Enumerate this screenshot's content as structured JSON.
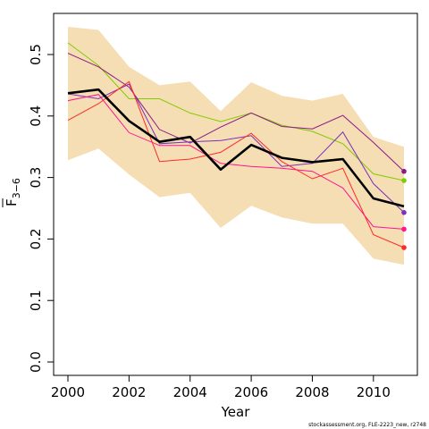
{
  "chart_data": {
    "type": "line",
    "xlabel": "Year",
    "ylabel": "F",
    "ylabel_subscript": "3−6",
    "credit": "stockassessment.org, FLE-2223_new, r2748",
    "xlim": [
      2000,
      2011
    ],
    "ylim": [
      0,
      0.5
    ],
    "x_ticks": [
      2000,
      2002,
      2004,
      2006,
      2008,
      2010
    ],
    "y_ticks": [
      0.0,
      0.1,
      0.2,
      0.3,
      0.4,
      0.5
    ],
    "x_tick_labels": [
      "2000",
      "2002",
      "2004",
      "2006",
      "2008",
      "2010"
    ],
    "y_tick_labels": [
      "0.0",
      "0.1",
      "0.2",
      "0.3",
      "0.4",
      "0.5"
    ],
    "grid": false,
    "x": [
      2000,
      2001,
      2002,
      2003,
      2004,
      2005,
      2006,
      2007,
      2008,
      2009,
      2010,
      2011
    ],
    "band": {
      "color": "#f5deb3",
      "upper": [
        0.545,
        0.54,
        0.48,
        0.45,
        0.456,
        0.408,
        0.455,
        0.433,
        0.425,
        0.436,
        0.366,
        0.35
      ],
      "lower": [
        0.328,
        0.347,
        0.305,
        0.268,
        0.275,
        0.218,
        0.254,
        0.235,
        0.225,
        0.225,
        0.168,
        0.158
      ]
    },
    "main": {
      "color": "#000000",
      "values": [
        0.437,
        0.443,
        0.392,
        0.358,
        0.366,
        0.313,
        0.353,
        0.332,
        0.325,
        0.33,
        0.266,
        0.253
      ]
    },
    "series": [
      {
        "color": "#7fcc00",
        "values": [
          0.519,
          0.482,
          0.428,
          0.428,
          0.405,
          0.391,
          0.405,
          0.385,
          0.375,
          0.355,
          0.306,
          0.295
        ]
      },
      {
        "color": "#8b1a89",
        "values": [
          0.502,
          0.48,
          0.447,
          0.378,
          0.356,
          0.382,
          0.405,
          0.383,
          0.379,
          0.401,
          0.357,
          0.31
        ]
      },
      {
        "color": "#7b2fbf",
        "values": [
          0.436,
          0.428,
          0.452,
          0.355,
          0.358,
          0.36,
          0.368,
          0.318,
          0.323,
          0.374,
          0.29,
          0.243
        ]
      },
      {
        "color": "#ff1493",
        "values": [
          0.425,
          0.435,
          0.373,
          0.352,
          0.352,
          0.323,
          0.318,
          0.315,
          0.31,
          0.283,
          0.22,
          0.216
        ]
      },
      {
        "color": "#ff2a2a",
        "values": [
          0.393,
          0.42,
          0.456,
          0.326,
          0.33,
          0.341,
          0.372,
          0.326,
          0.298,
          0.315,
          0.207,
          0.186
        ]
      }
    ]
  }
}
